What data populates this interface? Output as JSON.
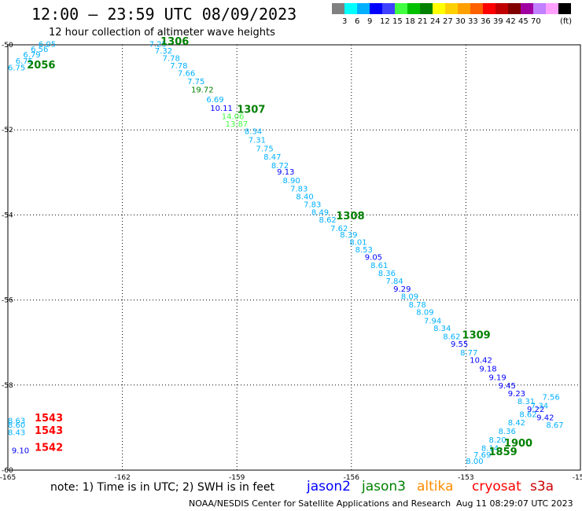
{
  "header": {
    "title": "12:00 — 23:59 UTC 08/09/2023",
    "subtitle": "12 hour collection of altimeter wave heights"
  },
  "color_scale": {
    "swatches": [
      "#808080",
      "#00ffff",
      "#00b0ff",
      "#0000ff",
      "#4040ff",
      "#40ff40",
      "#00c000",
      "#008000",
      "#ffff00",
      "#ffd000",
      "#ffa000",
      "#ff6000",
      "#ff0000",
      "#c00000",
      "#800000",
      "#a000a0",
      "#c080ff",
      "#ffa0ff",
      "#000000"
    ],
    "ticks": [
      "3",
      "6",
      "9",
      "12",
      "15",
      "18",
      "21",
      "24",
      "27",
      "30",
      "33",
      "36",
      "39",
      "42",
      "45",
      "70"
    ],
    "unit": "(ft)"
  },
  "footer": {
    "note": "note: 1) Time is in UTC; 2) SWH is in feet",
    "satellites": [
      {
        "name": "jason2",
        "color": "#0000ff"
      },
      {
        "name": "jason3",
        "color": "#008000"
      },
      {
        "name": "altika",
        "color": "#ff8c00"
      },
      {
        "name": "cryosat",
        "color": "#ff0000"
      },
      {
        "name": "s3a",
        "color": "#cc0000"
      }
    ],
    "credit": "NOAA/NESDIS Center for Satellite Applications and Research",
    "generated": "Aug 11 08:29:07 UTC 2023"
  },
  "chart_data": {
    "type": "scatter",
    "xlim": [
      -165,
      -150
    ],
    "ylim": [
      -60,
      -50
    ],
    "x_ticks": [
      -165,
      -162,
      -159,
      -156,
      -153,
      -150
    ],
    "y_ticks": [
      -50,
      -52,
      -54,
      -56,
      -58,
      -60
    ],
    "grid": true,
    "series": [
      {
        "points": [
          {
            "x": -164.2,
            "y": -50.05,
            "v": "6.05",
            "c": "#00b0ff"
          },
          {
            "x": -164.4,
            "y": -50.17,
            "v": "6.56",
            "c": "#00b0ff"
          },
          {
            "x": -164.6,
            "y": -50.3,
            "v": "6.79",
            "c": "#00b0ff"
          },
          {
            "x": -164.8,
            "y": -50.44,
            "v": "6.75",
            "c": "#00b0ff"
          },
          {
            "x": -165.0,
            "y": -50.6,
            "v": "6.75",
            "c": "#00b0ff"
          },
          {
            "x": -161.3,
            "y": -50.05,
            "v": "7.25",
            "c": "#00b0ff"
          },
          {
            "x": -161.15,
            "y": -50.2,
            "v": "7.32",
            "c": "#00b0ff"
          },
          {
            "x": -160.95,
            "y": -50.38,
            "v": "7.78",
            "c": "#00b0ff"
          },
          {
            "x": -160.75,
            "y": -50.55,
            "v": "7.78",
            "c": "#00b0ff"
          },
          {
            "x": -160.55,
            "y": -50.73,
            "v": "7.66",
            "c": "#00b0ff"
          },
          {
            "x": -160.3,
            "y": -50.92,
            "v": "7.75",
            "c": "#00b0ff"
          },
          {
            "x": -160.2,
            "y": -51.12,
            "v": "19.72",
            "c": "#008000"
          },
          {
            "x": -159.8,
            "y": -51.35,
            "v": "6.69",
            "c": "#00b0ff"
          },
          {
            "x": -159.7,
            "y": -51.55,
            "v": "10.11",
            "c": "#0000ff"
          },
          {
            "x": -159.4,
            "y": -51.75,
            "v": "14.06",
            "c": "#40ff40"
          },
          {
            "x": -159.3,
            "y": -51.92,
            "v": "13.87",
            "c": "#40ff40"
          },
          {
            "x": -158.8,
            "y": -52.1,
            "v": "8.34",
            "c": "#00b0ff"
          },
          {
            "x": -158.7,
            "y": -52.3,
            "v": "7.31",
            "c": "#00b0ff"
          },
          {
            "x": -158.5,
            "y": -52.5,
            "v": "7.75",
            "c": "#00b0ff"
          },
          {
            "x": -158.3,
            "y": -52.7,
            "v": "8.47",
            "c": "#00b0ff"
          },
          {
            "x": -158.1,
            "y": -52.9,
            "v": "8.72",
            "c": "#00b0ff"
          },
          {
            "x": -157.95,
            "y": -53.05,
            "v": "9.13",
            "c": "#0000ff"
          },
          {
            "x": -157.8,
            "y": -53.25,
            "v": "8.90",
            "c": "#00b0ff"
          },
          {
            "x": -157.6,
            "y": -53.45,
            "v": "7.83",
            "c": "#00b0ff"
          },
          {
            "x": -157.45,
            "y": -53.63,
            "v": "8.40",
            "c": "#00b0ff"
          },
          {
            "x": -157.25,
            "y": -53.82,
            "v": "7.83",
            "c": "#00b0ff"
          },
          {
            "x": -157.05,
            "y": -54.0,
            "v": "8.49",
            "c": "#00b0ff"
          },
          {
            "x": -156.85,
            "y": -54.18,
            "v": "8.62",
            "c": "#00b0ff"
          },
          {
            "x": -156.55,
            "y": -54.38,
            "v": "7.62",
            "c": "#00b0ff"
          },
          {
            "x": -156.3,
            "y": -54.53,
            "v": "8.39",
            "c": "#00b0ff"
          },
          {
            "x": -156.05,
            "y": -54.7,
            "v": "8.01",
            "c": "#00b0ff"
          },
          {
            "x": -155.9,
            "y": -54.88,
            "v": "8.53",
            "c": "#00b0ff"
          },
          {
            "x": -155.65,
            "y": -55.06,
            "v": "9.05",
            "c": "#0000ff"
          },
          {
            "x": -155.5,
            "y": -55.25,
            "v": "8.61",
            "c": "#00b0ff"
          },
          {
            "x": -155.3,
            "y": -55.43,
            "v": "8.36",
            "c": "#00b0ff"
          },
          {
            "x": -155.1,
            "y": -55.62,
            "v": "7.84",
            "c": "#00b0ff"
          },
          {
            "x": -154.9,
            "y": -55.8,
            "v": "9.29",
            "c": "#0000ff"
          },
          {
            "x": -154.7,
            "y": -55.98,
            "v": "8.09",
            "c": "#00b0ff"
          },
          {
            "x": -154.5,
            "y": -56.17,
            "v": "8.78",
            "c": "#00b0ff"
          },
          {
            "x": -154.3,
            "y": -56.35,
            "v": "8.09",
            "c": "#00b0ff"
          },
          {
            "x": -154.1,
            "y": -56.55,
            "v": "7.94",
            "c": "#00b0ff"
          },
          {
            "x": -153.85,
            "y": -56.73,
            "v": "8.34",
            "c": "#00b0ff"
          },
          {
            "x": -153.6,
            "y": -56.92,
            "v": "8.62",
            "c": "#00b0ff"
          },
          {
            "x": -153.4,
            "y": -57.1,
            "v": "9.55",
            "c": "#0000ff"
          },
          {
            "x": -153.15,
            "y": -57.3,
            "v": "8.77",
            "c": "#00b0ff"
          },
          {
            "x": -152.9,
            "y": -57.48,
            "v": "10.42",
            "c": "#0000ff"
          },
          {
            "x": -152.65,
            "y": -57.68,
            "v": "9.18",
            "c": "#0000ff"
          },
          {
            "x": -152.4,
            "y": -57.88,
            "v": "9.19",
            "c": "#0000ff"
          },
          {
            "x": -152.15,
            "y": -58.08,
            "v": "9.45",
            "c": "#0000ff"
          },
          {
            "x": -151.9,
            "y": -58.26,
            "v": "9.23",
            "c": "#0000ff"
          },
          {
            "x": -151.65,
            "y": -58.45,
            "v": "8.31",
            "c": "#00b0ff"
          },
          {
            "x": -151.4,
            "y": -58.63,
            "v": "9.22",
            "c": "#0000ff"
          },
          {
            "x": -151.15,
            "y": -58.83,
            "v": "9.42",
            "c": "#0000ff"
          },
          {
            "x": -150.9,
            "y": -59.0,
            "v": "8.67",
            "c": "#00b0ff"
          },
          {
            "x": -165.0,
            "y": -58.9,
            "v": "8.63",
            "c": "#00b0ff"
          },
          {
            "x": -165.0,
            "y": -59.0,
            "v": "8.60",
            "c": "#00b0ff"
          },
          {
            "x": -165.0,
            "y": -59.18,
            "v": "8.43",
            "c": "#00b0ff"
          },
          {
            "x": -164.9,
            "y": -59.6,
            "v": "9.10",
            "c": "#0000ff"
          },
          {
            "x": -153.0,
            "y": -59.85,
            "v": "8.00",
            "c": "#00b0ff"
          },
          {
            "x": -152.8,
            "y": -59.7,
            "v": "7.69",
            "c": "#00b0ff"
          },
          {
            "x": -152.6,
            "y": -59.55,
            "v": "8.14",
            "c": "#00b0ff"
          },
          {
            "x": -152.4,
            "y": -59.35,
            "v": "8.20",
            "c": "#00b0ff"
          },
          {
            "x": -152.15,
            "y": -59.15,
            "v": "8.36",
            "c": "#00b0ff"
          },
          {
            "x": -151.9,
            "y": -58.95,
            "v": "8.42",
            "c": "#00b0ff"
          },
          {
            "x": -151.6,
            "y": -58.75,
            "v": "8.62",
            "c": "#00b0ff"
          },
          {
            "x": -151.3,
            "y": -58.55,
            "v": "7.34",
            "c": "#00b0ff"
          },
          {
            "x": -151.0,
            "y": -58.35,
            "v": "7.56",
            "c": "#00b0ff"
          }
        ]
      }
    ],
    "time_labels": [
      {
        "x": -161.0,
        "y": -50.0,
        "text": "1306",
        "c": "#008000"
      },
      {
        "x": -164.5,
        "y": -50.55,
        "text": "2056",
        "c": "#008000"
      },
      {
        "x": -159.0,
        "y": -51.6,
        "text": "1307",
        "c": "#008000"
      },
      {
        "x": -156.4,
        "y": -54.1,
        "text": "1308",
        "c": "#008000"
      },
      {
        "x": -153.1,
        "y": -56.9,
        "text": "1309",
        "c": "#008000"
      },
      {
        "x": -152.0,
        "y": -59.45,
        "text": "1900",
        "c": "#008000"
      },
      {
        "x": -152.4,
        "y": -59.65,
        "text": "1859",
        "c": "#008000"
      },
      {
        "x": -164.3,
        "y": -58.85,
        "text": "1543",
        "c": "#ff0000"
      },
      {
        "x": -164.3,
        "y": -59.15,
        "text": "1543",
        "c": "#ff0000"
      },
      {
        "x": -164.3,
        "y": -59.55,
        "text": "1542",
        "c": "#ff0000"
      }
    ]
  }
}
